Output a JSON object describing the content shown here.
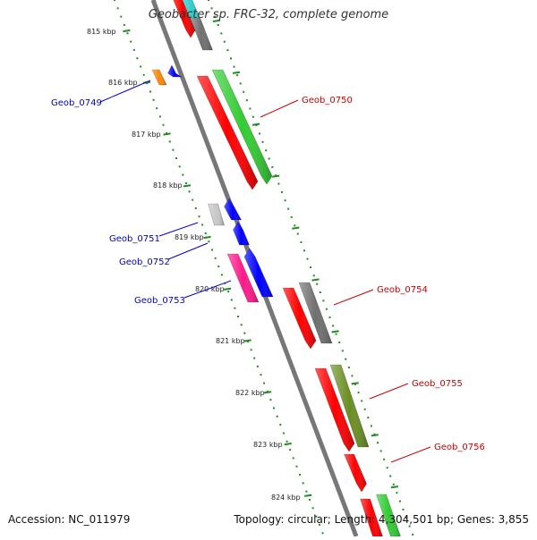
{
  "title": "Geobacter sp. FRC-32, complete genome",
  "footer": {
    "accession": "Accession: NC_011979",
    "topology": "Topology: circular; Length: 4,304,501 bp; Genes: 3,855"
  },
  "colors": {
    "red": "#ff0000",
    "green": "#33cc33",
    "blue": "#0000ff",
    "gray": "#707070",
    "light_gray": "#c8c8c8",
    "orange": "#ff8800",
    "magenta": "#ff1a8c",
    "olive": "#6b8e23",
    "label_blue": "#0000cc",
    "label_red": "#cc0000",
    "axis_green": "#228b22",
    "backbone": "#808080"
  },
  "kbp_ticks": [
    "815 kbp",
    "816 kbp",
    "817 kbp",
    "818 kbp",
    "819 kbp",
    "820 kbp",
    "821 kbp",
    "822 kbp",
    "823 kbp",
    "824 kbp"
  ],
  "gene_labels": {
    "left": [
      "Geob_0749",
      "Geob_0751",
      "Geob_0752",
      "Geob_0753"
    ],
    "right": [
      "Geob_0750",
      "Geob_0754",
      "Geob_0755",
      "Geob_0756"
    ]
  }
}
